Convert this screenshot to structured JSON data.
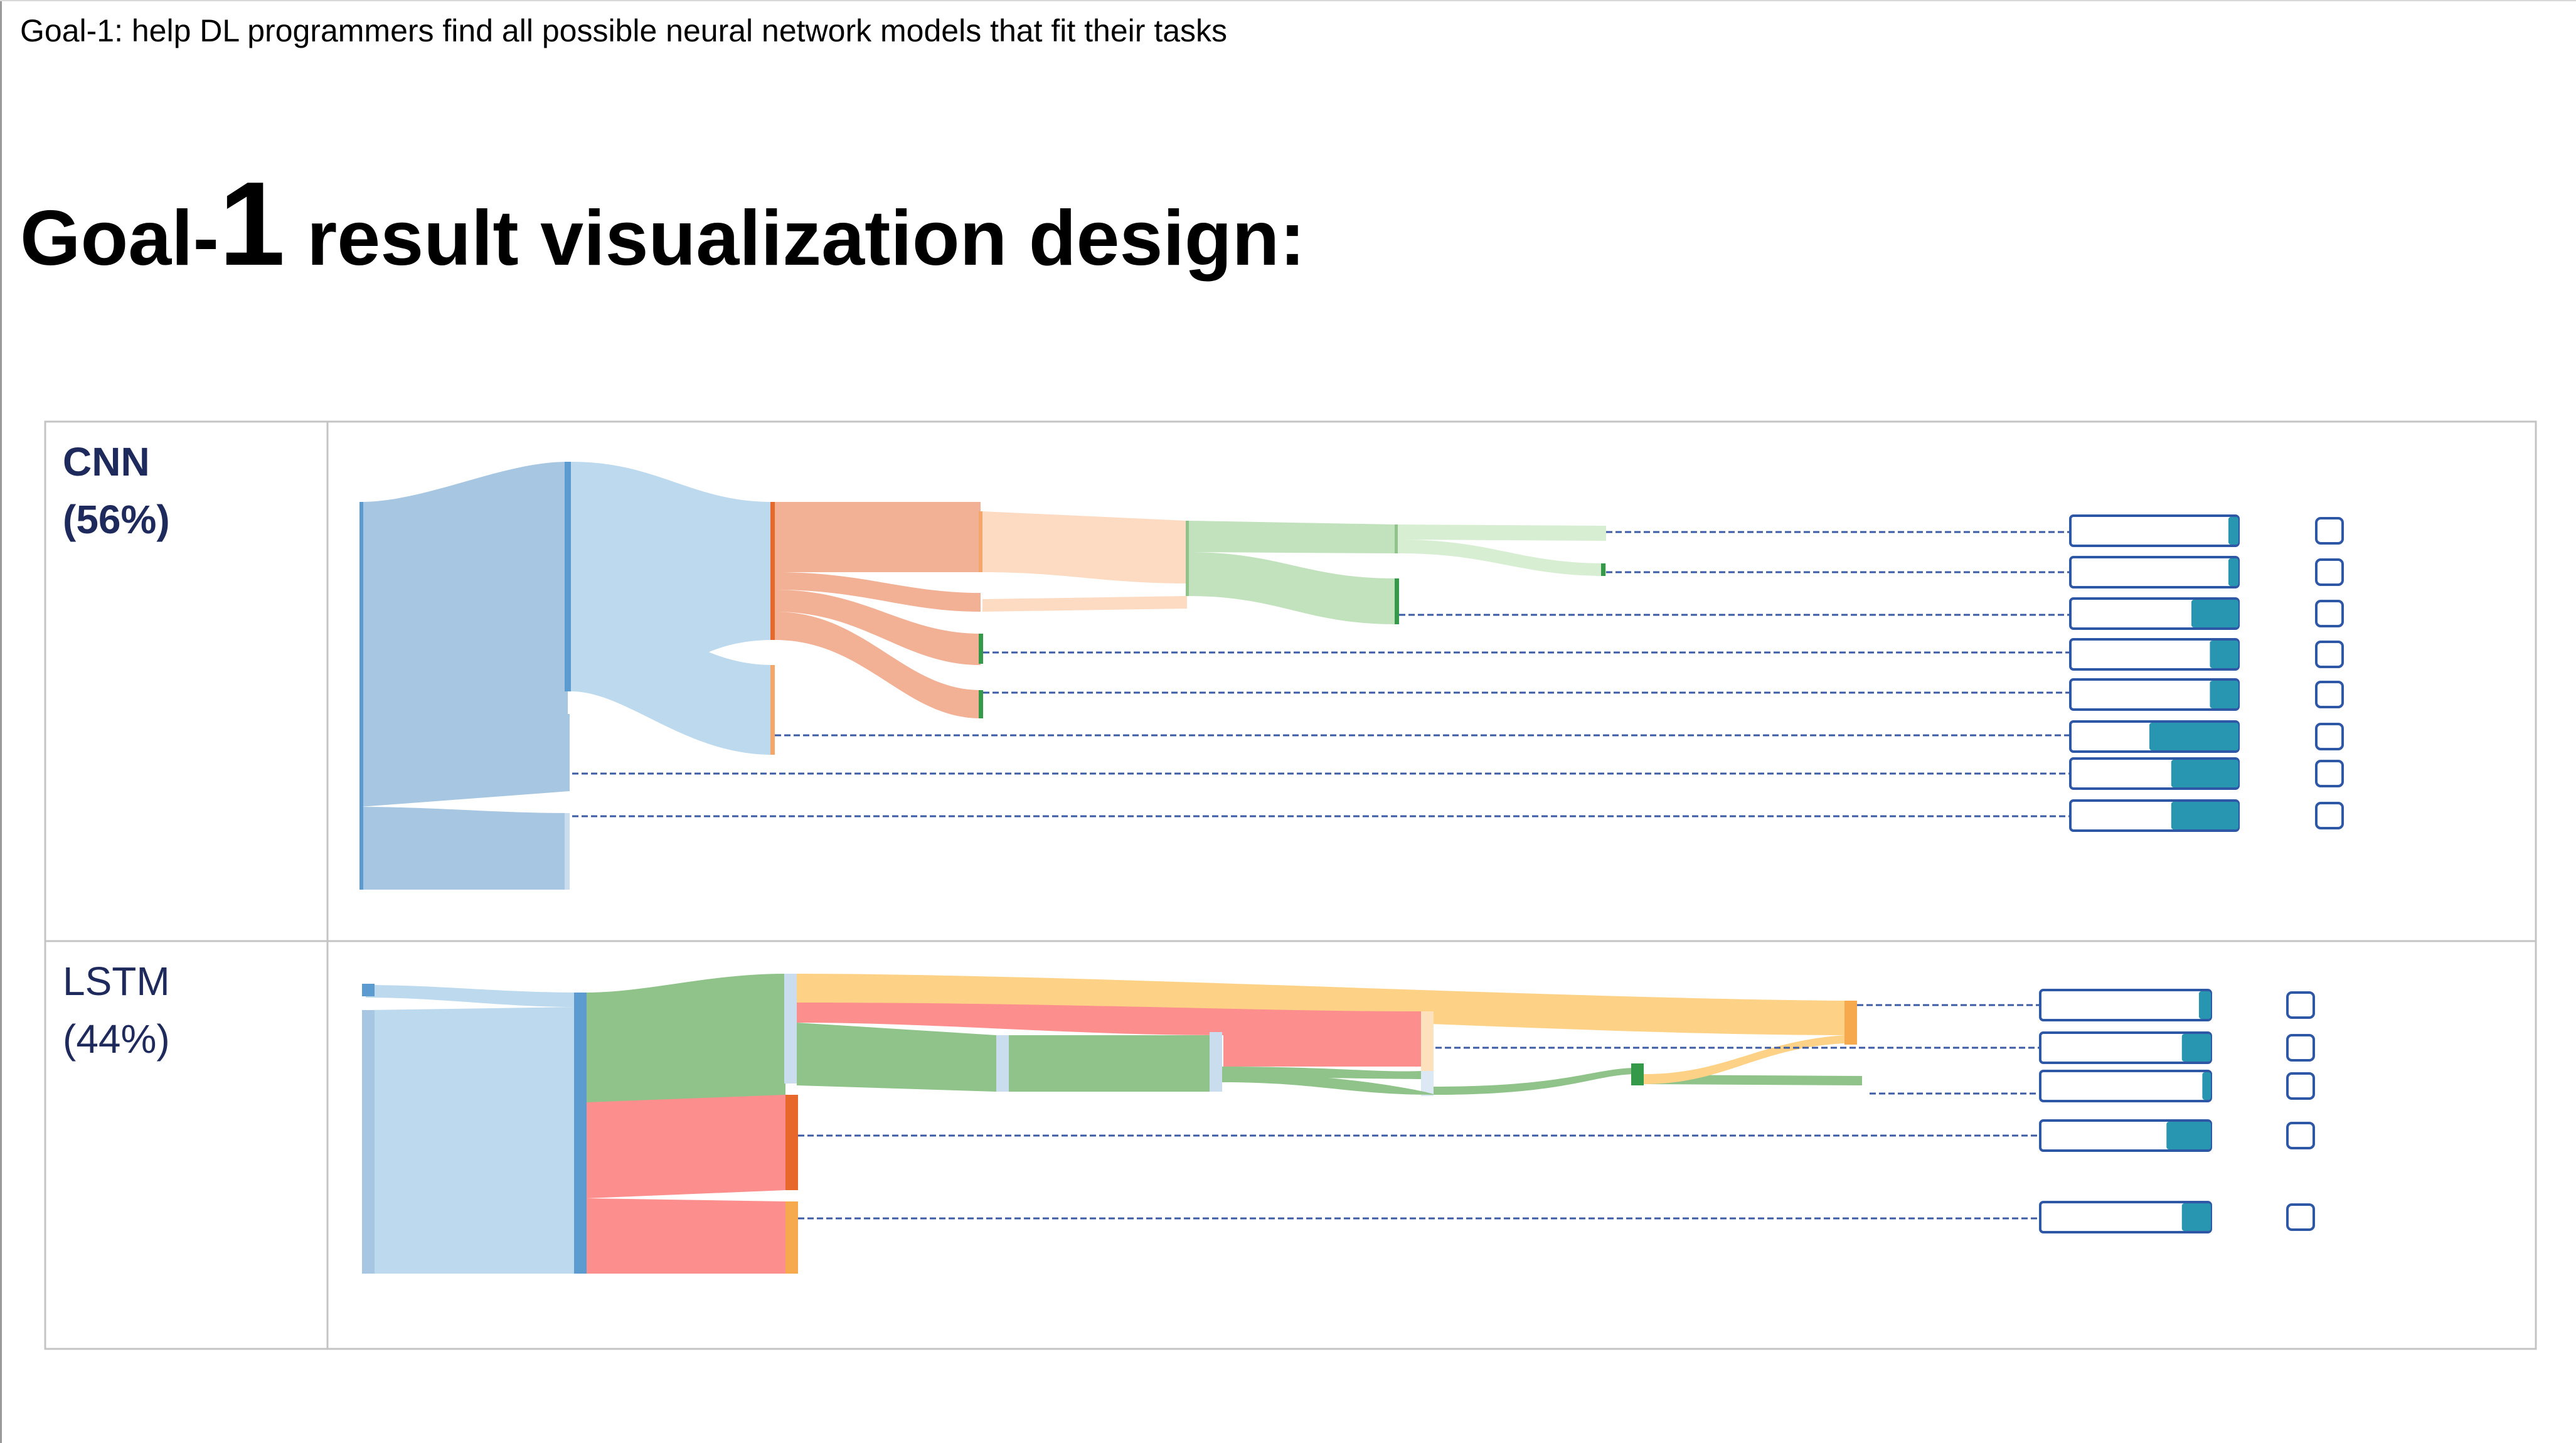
{
  "header": {
    "goal_text": "Goal-1: help DL programmers find all possible neural network models that fit their tasks",
    "design_title_prefix": "Goal-",
    "design_title_number": "1",
    "design_title_suffix": " result visualization design:"
  },
  "sections": [
    {
      "name": "CNN",
      "percent": "(56%)",
      "result_rows": [
        {
          "score_fill": 0.06
        },
        {
          "score_fill": 0.06
        },
        {
          "score_fill": 0.28
        },
        {
          "score_fill": 0.17
        },
        {
          "score_fill": 0.17
        },
        {
          "score_fill": 0.53
        },
        {
          "score_fill": 0.4
        },
        {
          "score_fill": 0.4
        }
      ]
    },
    {
      "name": "LSTM",
      "percent": "(44%)",
      "result_rows": [
        {
          "score_fill": 0.07
        },
        {
          "score_fill": 0.17
        },
        {
          "score_fill": 0.05
        },
        {
          "score_fill": 0.26
        },
        {
          "score_fill": 0.17
        }
      ]
    }
  ],
  "colors": {
    "blue_dark": "#5b9bd0",
    "blue_mid": "#a6c6e1",
    "blue_light": "#bcd9ee",
    "salmon": "#f2b095",
    "orange_dark": "#e8672a",
    "peach": "#fddbc2",
    "green_light": "#c1e2bd",
    "green_mid": "#8fc389",
    "green_dark": "#349a4a",
    "red": "#fd8e8e",
    "yellow": "#fdd287",
    "connector": "#3b5ba5",
    "score_fill": "#2896b0",
    "result_border": "#2e57a6"
  }
}
